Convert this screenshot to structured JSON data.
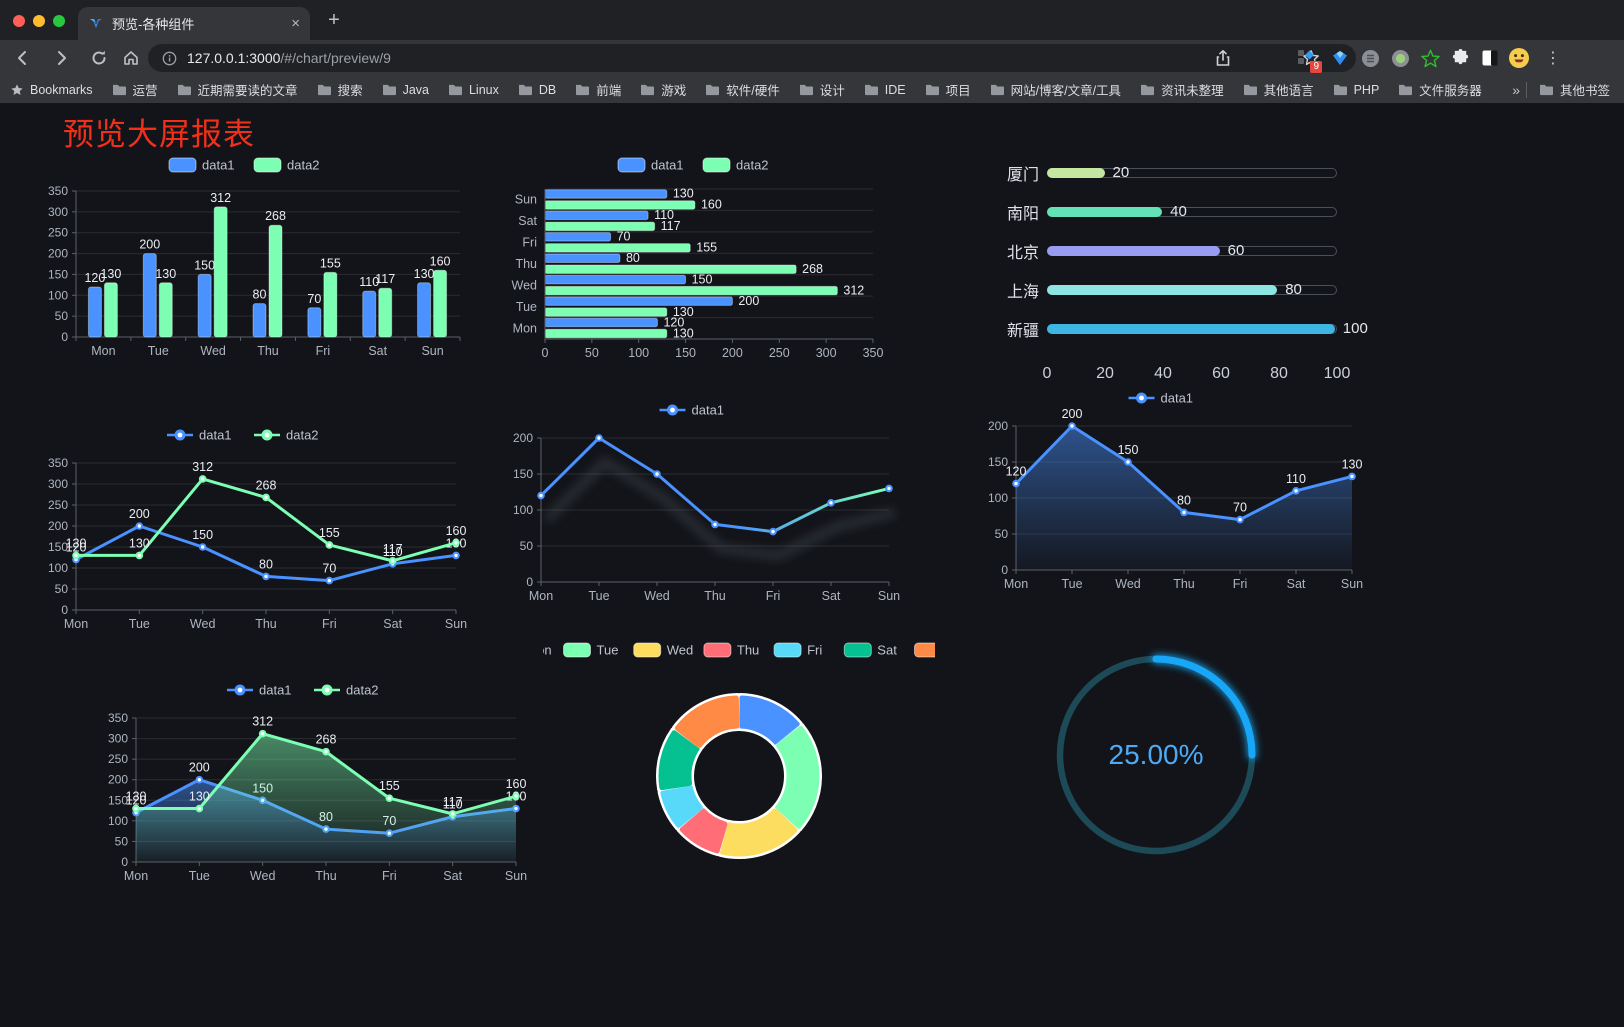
{
  "browser": {
    "tab_title": "预览-各种组件",
    "url_host": "127.0.0.1:3000",
    "url_path": "/#/chart/preview/9",
    "extension_badge": "9",
    "icons": {
      "close": "×",
      "new_tab": "+",
      "menu": "⋮",
      "overflow": "»"
    },
    "bookmarks": {
      "root_label": "Bookmarks",
      "folders": [
        "运营",
        "近期需要读的文章",
        "搜索",
        "Java",
        "Linux",
        "DB",
        "前端",
        "游戏",
        "软件/硬件",
        "设计",
        "IDE",
        "项目",
        "网站/博客/文章/工具",
        "资讯未整理",
        "其他语言",
        "PHP",
        "文件服务器"
      ],
      "overflow_label": "»",
      "other_label": "其他书签"
    }
  },
  "page": {
    "title": "预览大屏报表",
    "title_color": "#f2301a",
    "background": "#131419"
  },
  "palette": {
    "blue": "#4992ff",
    "green": "#7cffb2",
    "yellow": "#fddd60",
    "red": "#ff6e76",
    "cyan": "#58d9f9",
    "teal": "#05c091",
    "orange": "#ff8a45"
  },
  "chart_data": [
    {
      "type": "bar",
      "categories": [
        "Mon",
        "Tue",
        "Wed",
        "Thu",
        "Fri",
        "Sat",
        "Sun"
      ],
      "series": [
        {
          "name": "data1",
          "color": "#4992ff",
          "values": [
            120,
            200,
            150,
            80,
            70,
            110,
            130
          ]
        },
        {
          "name": "data2",
          "color": "#7cffb2",
          "values": [
            130,
            130,
            312,
            268,
            155,
            117,
            160
          ]
        }
      ],
      "ylim": [
        0,
        350
      ],
      "yticks": [
        0,
        50,
        100,
        150,
        200,
        250,
        300,
        350
      ],
      "legend_position": "top",
      "value_labels": true
    },
    {
      "type": "bar-horizontal",
      "categories": [
        "Mon",
        "Tue",
        "Wed",
        "Thu",
        "Fri",
        "Sat",
        "Sun"
      ],
      "invert_category_axis": true,
      "series": [
        {
          "name": "data1",
          "color": "#4992ff",
          "values": [
            120,
            200,
            150,
            80,
            70,
            110,
            130
          ]
        },
        {
          "name": "data2",
          "color": "#7cffb2",
          "values": [
            130,
            130,
            312,
            268,
            155,
            117,
            160
          ]
        }
      ],
      "xlim": [
        0,
        350
      ],
      "xticks": [
        0,
        50,
        100,
        150,
        200,
        250,
        300,
        350
      ],
      "legend_position": "top",
      "value_labels": true
    },
    {
      "type": "progress-bars",
      "items": [
        {
          "label": "厦门",
          "value": 20,
          "color": "#c4e7a1"
        },
        {
          "label": "南阳",
          "value": 40,
          "color": "#63e2b7"
        },
        {
          "label": "北京",
          "value": 60,
          "color": "#989df2"
        },
        {
          "label": "上海",
          "value": 80,
          "color": "#8ce5e2"
        },
        {
          "label": "新疆",
          "value": 100,
          "color": "#3eb6e4"
        }
      ],
      "xlim": [
        0,
        100
      ],
      "xticks": [
        0,
        20,
        40,
        60,
        80,
        100
      ]
    },
    {
      "type": "line",
      "categories": [
        "Mon",
        "Tue",
        "Wed",
        "Thu",
        "Fri",
        "Sat",
        "Sun"
      ],
      "series": [
        {
          "name": "data1",
          "color": "#4992ff",
          "values": [
            120,
            200,
            150,
            80,
            70,
            110,
            130
          ]
        },
        {
          "name": "data2",
          "color": "#7cffb2",
          "values": [
            130,
            130,
            312,
            268,
            155,
            117,
            160
          ]
        }
      ],
      "ylim": [
        0,
        350
      ],
      "yticks": [
        0,
        50,
        100,
        150,
        200,
        250,
        300,
        350
      ],
      "legend_position": "top",
      "value_labels": true
    },
    {
      "type": "line",
      "categories": [
        "Mon",
        "Tue",
        "Wed",
        "Thu",
        "Fri",
        "Sat",
        "Sun"
      ],
      "series": [
        {
          "name": "data1",
          "color": "#4992ff",
          "values": [
            120,
            200,
            150,
            80,
            70,
            110,
            130
          ],
          "line_gradient": [
            "#4992ff",
            "#7cffb2"
          ]
        }
      ],
      "ylim": [
        0,
        200
      ],
      "yticks": [
        0,
        50,
        100,
        150,
        200
      ],
      "legend_position": "top",
      "value_labels": false
    },
    {
      "type": "line",
      "categories": [
        "Mon",
        "Tue",
        "Wed",
        "Thu",
        "Fri",
        "Sat",
        "Sun"
      ],
      "series": [
        {
          "name": "data1",
          "color": "#4992ff",
          "values": [
            120,
            200,
            150,
            80,
            70,
            110,
            130
          ],
          "area": true
        }
      ],
      "ylim": [
        0,
        200
      ],
      "yticks": [
        0,
        50,
        100,
        150,
        200
      ],
      "legend_position": "top",
      "value_labels": true
    },
    {
      "type": "line",
      "categories": [
        "Mon",
        "Tue",
        "Wed",
        "Thu",
        "Fri",
        "Sat",
        "Sun"
      ],
      "series": [
        {
          "name": "data1",
          "color": "#4992ff",
          "values": [
            120,
            200,
            150,
            80,
            70,
            110,
            130
          ],
          "area": true
        },
        {
          "name": "data2",
          "color": "#7cffb2",
          "values": [
            130,
            130,
            312,
            268,
            155,
            117,
            160
          ],
          "area": true
        }
      ],
      "ylim": [
        0,
        350
      ],
      "yticks": [
        0,
        50,
        100,
        150,
        200,
        250,
        300,
        350
      ],
      "legend_position": "top",
      "value_labels": true
    },
    {
      "type": "pie-donut",
      "legend_position": "top",
      "items": [
        {
          "label": "Mon",
          "value": 120,
          "color": "#4992ff"
        },
        {
          "label": "Tue",
          "value": 200,
          "color": "#7cffb2"
        },
        {
          "label": "Wed",
          "value": 150,
          "color": "#fddd60"
        },
        {
          "label": "Thu",
          "value": 80,
          "color": "#ff6e76"
        },
        {
          "label": "Fri",
          "value": 70,
          "color": "#58d9f9"
        },
        {
          "label": "Sat",
          "value": 110,
          "color": "#05c091"
        },
        {
          "label": "Sun",
          "value": 130,
          "color": "#ff8a45"
        }
      ]
    },
    {
      "type": "gauge",
      "value": 25,
      "value_text": "25.00%",
      "color": "#18a7f6",
      "track_color": "#1d4a57",
      "text_color": "#4dabf5"
    }
  ]
}
